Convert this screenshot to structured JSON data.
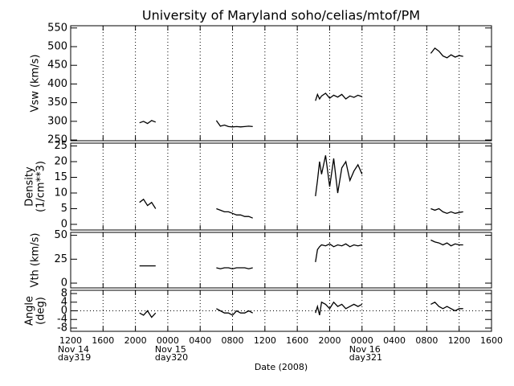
{
  "chart_data": [
    {
      "type": "line",
      "title": "University of Maryland  soho/celias/mtof/PM",
      "ylabel": [
        "Vsw (km/s)"
      ],
      "ylim": [
        248,
        556
      ],
      "yticks": [
        250,
        300,
        350,
        400,
        450,
        500,
        550
      ],
      "grid": true,
      "series": [
        {
          "color": "#000000",
          "x": [
            "2008-11-14T20:30",
            "2008-11-14T21:00",
            "2008-11-14T21:30",
            "2008-11-14T22:00",
            "2008-11-14T22:30",
            "2008-11-15T02:00",
            "2008-11-15T06:00",
            "2008-11-15T06:30",
            "2008-11-15T07:00",
            "2008-11-15T07:30",
            "2008-11-15T08:00",
            "2008-11-15T08:30",
            "2008-11-15T09:00",
            "2008-11-15T09:30",
            "2008-11-15T10:00",
            "2008-11-15T10:30",
            "2008-11-15T14:00",
            "2008-11-15T18:15",
            "2008-11-15T18:30",
            "2008-11-15T18:45",
            "2008-11-15T19:00",
            "2008-11-15T19:30",
            "2008-11-15T20:00",
            "2008-11-15T20:30",
            "2008-11-15T21:00",
            "2008-11-15T21:30",
            "2008-11-15T22:00",
            "2008-11-15T22:30",
            "2008-11-15T23:00",
            "2008-11-15T23:30",
            "2008-11-16T00:00",
            "2008-11-16T04:00",
            "2008-11-16T08:30",
            "2008-11-16T09:00",
            "2008-11-16T09:30",
            "2008-11-16T10:00",
            "2008-11-16T10:30",
            "2008-11-16T11:00",
            "2008-11-16T11:30",
            "2008-11-16T12:00",
            "2008-11-16T12:30"
          ],
          "values": [
            296,
            300,
            294,
            302,
            298,
            null,
            302,
            287,
            290,
            286,
            285,
            286,
            285,
            286,
            287,
            286,
            null,
            355,
            372,
            360,
            368,
            375,
            362,
            370,
            365,
            372,
            360,
            368,
            364,
            370,
            366,
            null,
            482,
            496,
            488,
            475,
            470,
            478,
            472,
            476,
            474
          ]
        }
      ]
    },
    {
      "type": "line",
      "ylabel": [
        "Density",
        "(1/cm**3)"
      ],
      "ylim": [
        -1.8,
        25.9
      ],
      "yticks": [
        0,
        5,
        10,
        15,
        20,
        25
      ],
      "grid": true,
      "series": [
        {
          "color": "#000000",
          "x": [
            "2008-11-14T20:30",
            "2008-11-14T21:00",
            "2008-11-14T21:30",
            "2008-11-14T22:00",
            "2008-11-14T22:30",
            "2008-11-15T02:00",
            "2008-11-15T06:00",
            "2008-11-15T06:30",
            "2008-11-15T07:00",
            "2008-11-15T07:30",
            "2008-11-15T08:00",
            "2008-11-15T08:30",
            "2008-11-15T09:00",
            "2008-11-15T09:30",
            "2008-11-15T10:00",
            "2008-11-15T10:30",
            "2008-11-15T14:00",
            "2008-11-15T18:15",
            "2008-11-15T18:30",
            "2008-11-15T18:45",
            "2008-11-15T19:00",
            "2008-11-15T19:30",
            "2008-11-15T20:00",
            "2008-11-15T20:30",
            "2008-11-15T21:00",
            "2008-11-15T21:30",
            "2008-11-15T22:00",
            "2008-11-15T22:30",
            "2008-11-15T23:00",
            "2008-11-15T23:30",
            "2008-11-16T00:00",
            "2008-11-16T04:00",
            "2008-11-16T08:30",
            "2008-11-16T09:00",
            "2008-11-16T09:30",
            "2008-11-16T10:00",
            "2008-11-16T10:30",
            "2008-11-16T11:00",
            "2008-11-16T11:30",
            "2008-11-16T12:00",
            "2008-11-16T12:30"
          ],
          "values": [
            7,
            8,
            6,
            7,
            5,
            null,
            5,
            4.5,
            4,
            4,
            3.5,
            3,
            3,
            2.5,
            2.5,
            2,
            null,
            9,
            14,
            20,
            16,
            22,
            12,
            21,
            10,
            18,
            20,
            14,
            17,
            19,
            16,
            null,
            5,
            4.5,
            5,
            4,
            3.5,
            4,
            3.5,
            3.8,
            4
          ]
        }
      ]
    },
    {
      "type": "line",
      "ylabel": [
        "Vth  (km/s)"
      ],
      "ylim": [
        -5,
        53
      ],
      "yticks": [
        0,
        25,
        50
      ],
      "grid": true,
      "series": [
        {
          "color": "#000000",
          "x": [
            "2008-11-14T20:30",
            "2008-11-14T21:00",
            "2008-11-14T21:30",
            "2008-11-14T22:00",
            "2008-11-14T22:30",
            "2008-11-15T02:00",
            "2008-11-15T06:00",
            "2008-11-15T06:30",
            "2008-11-15T07:00",
            "2008-11-15T07:30",
            "2008-11-15T08:00",
            "2008-11-15T08:30",
            "2008-11-15T09:00",
            "2008-11-15T09:30",
            "2008-11-15T10:00",
            "2008-11-15T10:30",
            "2008-11-15T14:00",
            "2008-11-15T18:15",
            "2008-11-15T18:30",
            "2008-11-15T18:45",
            "2008-11-15T19:00",
            "2008-11-15T19:30",
            "2008-11-15T20:00",
            "2008-11-15T20:30",
            "2008-11-15T21:00",
            "2008-11-15T21:30",
            "2008-11-15T22:00",
            "2008-11-15T22:30",
            "2008-11-15T23:00",
            "2008-11-15T23:30",
            "2008-11-16T00:00",
            "2008-11-16T04:00",
            "2008-11-16T08:30",
            "2008-11-16T09:00",
            "2008-11-16T09:30",
            "2008-11-16T10:00",
            "2008-11-16T10:30",
            "2008-11-16T11:00",
            "2008-11-16T11:30",
            "2008-11-16T12:00",
            "2008-11-16T12:30"
          ],
          "values": [
            18,
            18,
            18,
            18,
            18,
            null,
            16,
            15,
            16,
            16,
            15,
            16,
            16,
            16,
            15,
            16,
            null,
            22,
            35,
            38,
            40,
            39,
            41,
            38,
            40,
            39,
            41,
            38,
            40,
            39,
            40,
            null,
            45,
            43,
            42,
            40,
            42,
            39,
            41,
            40,
            40
          ]
        }
      ]
    },
    {
      "type": "line",
      "ylabel": [
        "Angle",
        "(deg)"
      ],
      "ylim": [
        -9.5,
        9.5
      ],
      "yticks": [
        -8,
        -4,
        0,
        4,
        8
      ],
      "grid": true,
      "zero_line": true,
      "xlabel": "Date (2008)",
      "xlim": [
        "2008-11-14T12:00",
        "2008-11-16T16:00"
      ],
      "xticks": [
        {
          "value": "2008-11-14T12:00",
          "label": "1200"
        },
        {
          "value": "2008-11-14T16:00",
          "label": "1600"
        },
        {
          "value": "2008-11-14T20:00",
          "label": "2000"
        },
        {
          "value": "2008-11-15T00:00",
          "label": "0000"
        },
        {
          "value": "2008-11-15T04:00",
          "label": "0400"
        },
        {
          "value": "2008-11-15T08:00",
          "label": "0800"
        },
        {
          "value": "2008-11-15T12:00",
          "label": "1200"
        },
        {
          "value": "2008-11-15T16:00",
          "label": "1600"
        },
        {
          "value": "2008-11-15T20:00",
          "label": "2000"
        },
        {
          "value": "2008-11-16T00:00",
          "label": "0000"
        },
        {
          "value": "2008-11-16T04:00",
          "label": "0400"
        },
        {
          "value": "2008-11-16T08:00",
          "label": "0800"
        },
        {
          "value": "2008-11-16T12:00",
          "label": "1200"
        },
        {
          "value": "2008-11-16T16:00",
          "label": "1600"
        }
      ],
      "date_labels": [
        {
          "value": "2008-11-14T12:00",
          "label": [
            "Nov 14",
            "day319"
          ]
        },
        {
          "value": "2008-11-15T00:00",
          "label": [
            "Nov 15",
            "day320"
          ]
        },
        {
          "value": "2008-11-16T00:00",
          "label": [
            "Nov 16",
            "day321"
          ]
        }
      ],
      "series": [
        {
          "color": "#000000",
          "x": [
            "2008-11-14T20:30",
            "2008-11-14T21:00",
            "2008-11-14T21:30",
            "2008-11-14T22:00",
            "2008-11-14T22:30",
            "2008-11-15T02:00",
            "2008-11-15T06:00",
            "2008-11-15T06:30",
            "2008-11-15T07:00",
            "2008-11-15T07:30",
            "2008-11-15T08:00",
            "2008-11-15T08:30",
            "2008-11-15T09:00",
            "2008-11-15T09:30",
            "2008-11-15T10:00",
            "2008-11-15T10:30",
            "2008-11-15T14:00",
            "2008-11-15T18:15",
            "2008-11-15T18:30",
            "2008-11-15T18:45",
            "2008-11-15T19:00",
            "2008-11-15T19:30",
            "2008-11-15T20:00",
            "2008-11-15T20:30",
            "2008-11-15T21:00",
            "2008-11-15T21:30",
            "2008-11-15T22:00",
            "2008-11-15T22:30",
            "2008-11-15T23:00",
            "2008-11-15T23:30",
            "2008-11-16T00:00",
            "2008-11-16T04:00",
            "2008-11-16T08:30",
            "2008-11-16T09:00",
            "2008-11-16T09:30",
            "2008-11-16T10:00",
            "2008-11-16T10:30",
            "2008-11-16T11:00",
            "2008-11-16T11:30",
            "2008-11-16T12:00",
            "2008-11-16T12:30"
          ],
          "values": [
            -1,
            -2,
            0,
            -3,
            -1,
            null,
            1,
            0,
            -1,
            -1,
            -2,
            0,
            -1,
            -1,
            0,
            -1,
            null,
            -1,
            2,
            -2,
            4,
            3,
            1,
            4,
            2,
            3,
            1,
            2,
            3,
            2,
            3,
            null,
            3,
            4,
            2,
            1,
            2,
            1,
            0,
            1,
            1
          ]
        }
      ]
    }
  ]
}
